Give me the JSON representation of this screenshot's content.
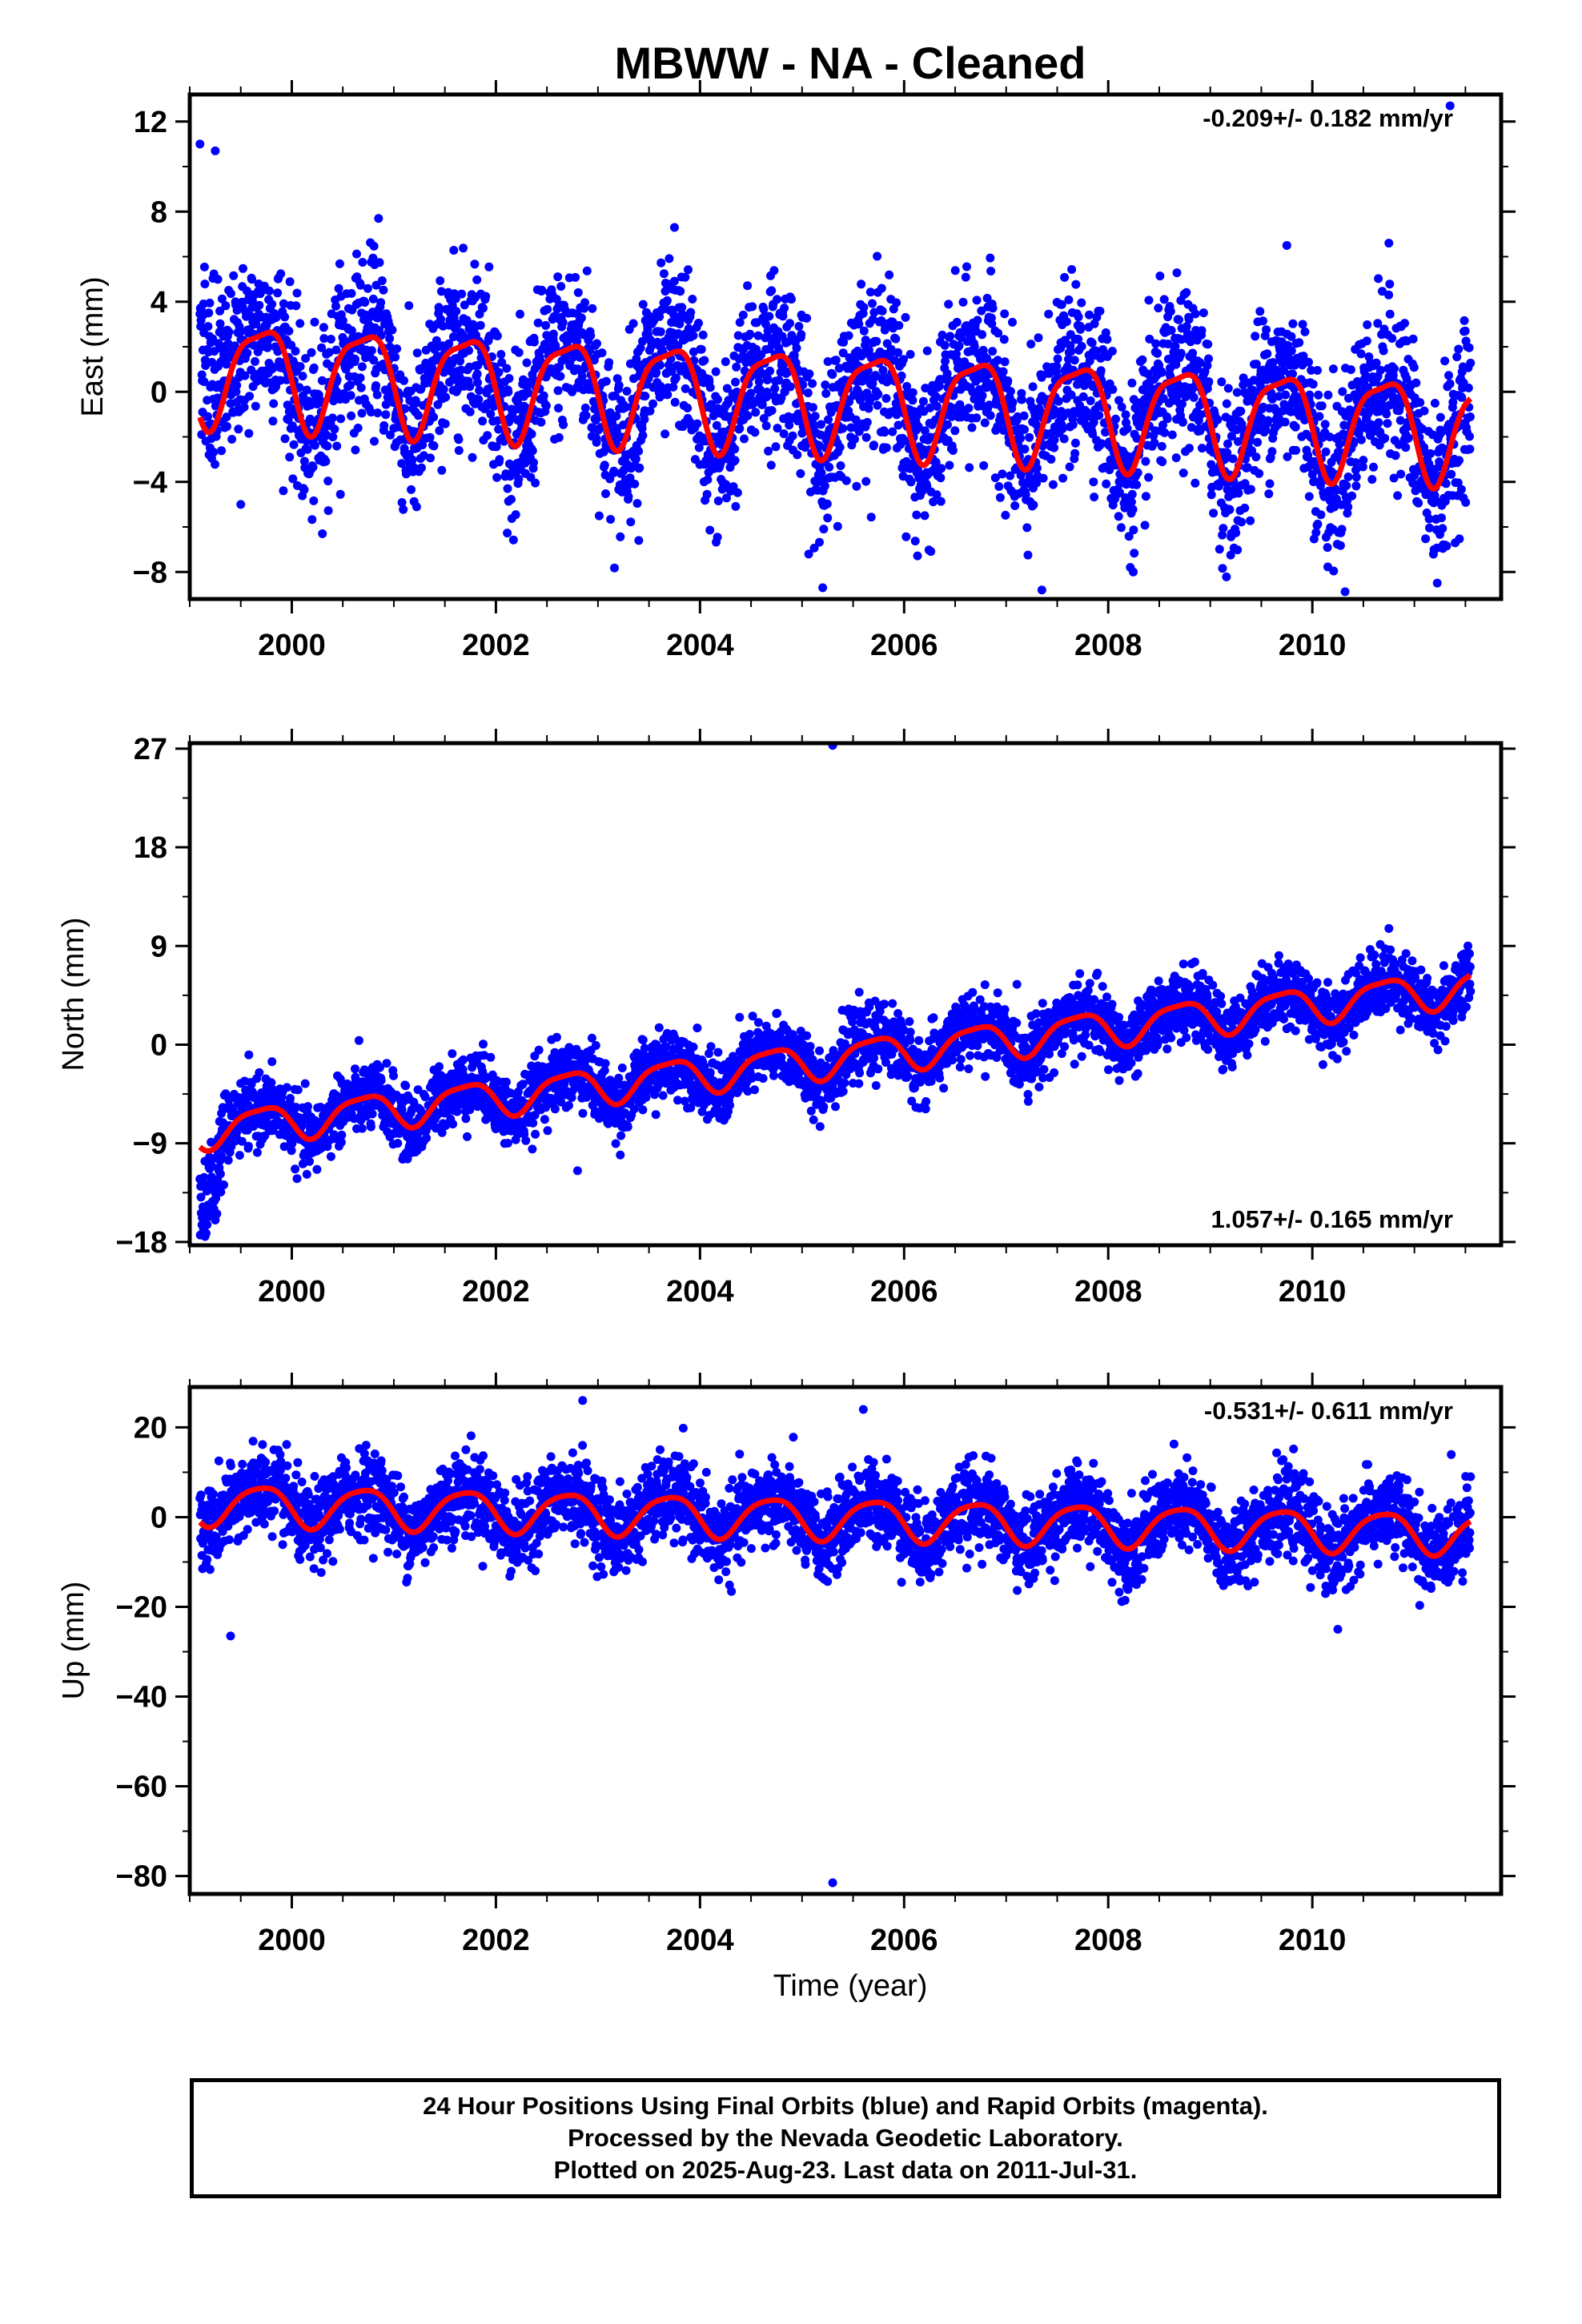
{
  "chart_data": {
    "type": "scatter",
    "title": "MBWW  - NA - Cleaned",
    "xlabel": "Time (year)",
    "xlim": [
      1999.0,
      2011.85
    ],
    "x_ticks": [
      2000,
      2002,
      2004,
      2006,
      2008,
      2010
    ],
    "x_tick_labels": [
      "2000",
      "2002",
      "2004",
      "2006",
      "2008",
      "2010"
    ],
    "point_color": "#0000ff",
    "model_color": "#ff0000",
    "panels": [
      {
        "name": "east",
        "ylabel": "East (mm)",
        "ylim": [
          -9.2,
          13.2
        ],
        "y_ticks": [
          -8,
          -4,
          0,
          4,
          8,
          12
        ],
        "y_tick_labels": [
          "−8",
          "−4",
          "0",
          "4",
          "8",
          "12"
        ],
        "rate_label": "-0.209+/- 0.182 mm/yr",
        "rate_position": "top-right",
        "trend": {
          "start": 1999.1,
          "end": 2011.55,
          "y0": 1.0,
          "rate": -0.209,
          "annual_amplitude": 2.2,
          "semiannual_amplitude": 0.6,
          "scatter": 1.8
        },
        "outliers": [
          {
            "x": 1999.1,
            "y": 11.0
          },
          {
            "x": 1999.25,
            "y": 10.7
          },
          {
            "x": 2000.85,
            "y": 7.7
          },
          {
            "x": 2003.75,
            "y": 7.3
          },
          {
            "x": 2003.4,
            "y": -6.6
          },
          {
            "x": 2007.35,
            "y": -8.8
          },
          {
            "x": 2011.35,
            "y": 12.7
          },
          {
            "x": 2011.3,
            "y": -6.8
          },
          {
            "x": 1999.5,
            "y": -5.0
          },
          {
            "x": 2000.3,
            "y": -6.3
          },
          {
            "x": 2010.75,
            "y": 6.6
          },
          {
            "x": 2009.75,
            "y": 6.5
          }
        ]
      },
      {
        "name": "north",
        "ylabel": "North (mm)",
        "ylim": [
          -18.3,
          27.5
        ],
        "y_ticks": [
          -18,
          -9,
          0,
          9,
          18,
          27
        ],
        "y_tick_labels": [
          "−18",
          "−9",
          "0",
          "9",
          "18",
          "27"
        ],
        "rate_label": "1.057+/- 0.165 mm/yr",
        "rate_position": "bottom-right",
        "trend": {
          "start": 1999.1,
          "end": 2011.55,
          "y0": -7.8,
          "rate": 1.057,
          "annual_amplitude": 1.6,
          "semiannual_amplitude": 0.4,
          "scatter": 1.5
        },
        "outliers": [
          {
            "x": 2005.3,
            "y": 27.3
          },
          {
            "x": 1999.15,
            "y": -17.5
          },
          {
            "x": 1999.25,
            "y": -16.0
          },
          {
            "x": 2002.8,
            "y": -11.5
          },
          {
            "x": 2010.75,
            "y": 10.6
          }
        ]
      },
      {
        "name": "up",
        "ylabel": "Up (mm)",
        "ylim": [
          -84,
          29
        ],
        "y_ticks": [
          -80,
          -60,
          -40,
          -20,
          0,
          20
        ],
        "y_tick_labels": [
          "−80",
          "−60",
          "−40",
          "−20",
          "0",
          "20"
        ],
        "rate_label": "-0.531+/- 0.611 mm/yr",
        "rate_position": "top-right",
        "trend": {
          "start": 1999.1,
          "end": 2011.55,
          "y0": 3.0,
          "rate": -0.531,
          "annual_amplitude": 4.5,
          "semiannual_amplitude": 0.8,
          "scatter": 4.5
        },
        "outliers": [
          {
            "x": 2005.3,
            "y": -81.5
          },
          {
            "x": 1999.4,
            "y": -26.5
          },
          {
            "x": 2002.85,
            "y": 26.0
          },
          {
            "x": 2005.6,
            "y": 24.0
          },
          {
            "x": 2010.25,
            "y": -25.0
          }
        ]
      }
    ]
  },
  "footer": {
    "line1": "24 Hour Positions Using Final Orbits (blue) and Rapid Orbits (magenta).",
    "line2": "Processed by the Nevada Geodetic Laboratory.",
    "line3": "Plotted on 2025-Aug-23. Last data on 2011-Jul-31."
  }
}
